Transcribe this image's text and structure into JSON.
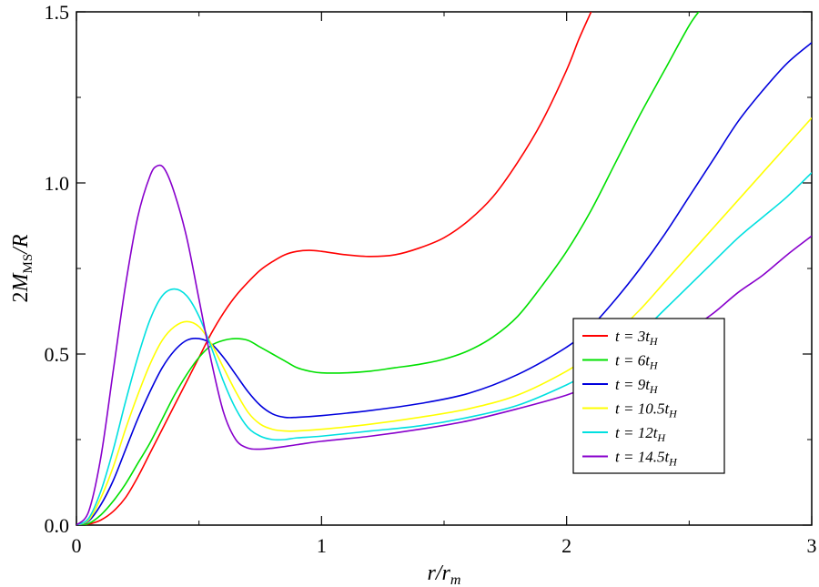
{
  "chart_data": {
    "type": "line",
    "xlabel": "r/r_m",
    "ylabel": "2M_MS/R",
    "xlim": [
      0,
      3
    ],
    "ylim": [
      0,
      1.5
    ],
    "x_ticks": [
      "0",
      "1",
      "2",
      "3"
    ],
    "y_ticks": [
      "0.0",
      "0.5",
      "1.0",
      "1.5"
    ],
    "grid": false,
    "legend_position": "center-right",
    "series": [
      {
        "name": "t = 3t_H",
        "color": "#ff0000",
        "points": [
          [
            0,
            0
          ],
          [
            0.05,
            0.003
          ],
          [
            0.1,
            0.015
          ],
          [
            0.15,
            0.04
          ],
          [
            0.2,
            0.08
          ],
          [
            0.25,
            0.14
          ],
          [
            0.3,
            0.21
          ],
          [
            0.35,
            0.28
          ],
          [
            0.4,
            0.35
          ],
          [
            0.45,
            0.42
          ],
          [
            0.5,
            0.49
          ],
          [
            0.55,
            0.56
          ],
          [
            0.6,
            0.62
          ],
          [
            0.65,
            0.67
          ],
          [
            0.7,
            0.71
          ],
          [
            0.75,
            0.745
          ],
          [
            0.8,
            0.77
          ],
          [
            0.85,
            0.79
          ],
          [
            0.9,
            0.8
          ],
          [
            0.95,
            0.803
          ],
          [
            1.0,
            0.8
          ],
          [
            1.1,
            0.79
          ],
          [
            1.2,
            0.785
          ],
          [
            1.3,
            0.79
          ],
          [
            1.4,
            0.81
          ],
          [
            1.5,
            0.84
          ],
          [
            1.6,
            0.89
          ],
          [
            1.7,
            0.96
          ],
          [
            1.8,
            1.06
          ],
          [
            1.9,
            1.18
          ],
          [
            2.0,
            1.33
          ],
          [
            2.05,
            1.42
          ],
          [
            2.1,
            1.5
          ]
        ]
      },
      {
        "name": "t = 6t_H",
        "color": "#00e000",
        "points": [
          [
            0,
            0
          ],
          [
            0.05,
            0.005
          ],
          [
            0.1,
            0.03
          ],
          [
            0.15,
            0.07
          ],
          [
            0.2,
            0.12
          ],
          [
            0.25,
            0.18
          ],
          [
            0.3,
            0.24
          ],
          [
            0.35,
            0.31
          ],
          [
            0.4,
            0.38
          ],
          [
            0.45,
            0.44
          ],
          [
            0.5,
            0.49
          ],
          [
            0.55,
            0.525
          ],
          [
            0.6,
            0.54
          ],
          [
            0.65,
            0.545
          ],
          [
            0.7,
            0.54
          ],
          [
            0.75,
            0.52
          ],
          [
            0.8,
            0.5
          ],
          [
            0.85,
            0.48
          ],
          [
            0.9,
            0.46
          ],
          [
            0.95,
            0.45
          ],
          [
            1.0,
            0.445
          ],
          [
            1.1,
            0.445
          ],
          [
            1.2,
            0.45
          ],
          [
            1.3,
            0.46
          ],
          [
            1.4,
            0.47
          ],
          [
            1.5,
            0.485
          ],
          [
            1.6,
            0.51
          ],
          [
            1.7,
            0.55
          ],
          [
            1.8,
            0.61
          ],
          [
            1.9,
            0.7
          ],
          [
            2.0,
            0.8
          ],
          [
            2.1,
            0.92
          ],
          [
            2.2,
            1.06
          ],
          [
            2.3,
            1.2
          ],
          [
            2.4,
            1.33
          ],
          [
            2.5,
            1.46
          ],
          [
            2.55,
            1.51
          ]
        ]
      },
      {
        "name": "t = 9t_H",
        "color": "#0000dd",
        "points": [
          [
            0,
            0
          ],
          [
            0.05,
            0.012
          ],
          [
            0.1,
            0.06
          ],
          [
            0.15,
            0.13
          ],
          [
            0.2,
            0.22
          ],
          [
            0.25,
            0.31
          ],
          [
            0.3,
            0.39
          ],
          [
            0.35,
            0.46
          ],
          [
            0.4,
            0.51
          ],
          [
            0.45,
            0.54
          ],
          [
            0.5,
            0.545
          ],
          [
            0.55,
            0.53
          ],
          [
            0.6,
            0.49
          ],
          [
            0.65,
            0.44
          ],
          [
            0.7,
            0.39
          ],
          [
            0.75,
            0.35
          ],
          [
            0.8,
            0.325
          ],
          [
            0.85,
            0.315
          ],
          [
            0.9,
            0.315
          ],
          [
            1.0,
            0.32
          ],
          [
            1.2,
            0.335
          ],
          [
            1.4,
            0.355
          ],
          [
            1.6,
            0.385
          ],
          [
            1.8,
            0.44
          ],
          [
            2.0,
            0.52
          ],
          [
            2.1,
            0.58
          ],
          [
            2.2,
            0.66
          ],
          [
            2.3,
            0.75
          ],
          [
            2.4,
            0.85
          ],
          [
            2.5,
            0.96
          ],
          [
            2.6,
            1.07
          ],
          [
            2.7,
            1.18
          ],
          [
            2.8,
            1.27
          ],
          [
            2.9,
            1.35
          ],
          [
            3.0,
            1.41
          ]
        ]
      },
      {
        "name": "t = 10.5t_H",
        "color": "#ffff00",
        "points": [
          [
            0,
            0
          ],
          [
            0.05,
            0.015
          ],
          [
            0.1,
            0.08
          ],
          [
            0.15,
            0.17
          ],
          [
            0.2,
            0.28
          ],
          [
            0.25,
            0.38
          ],
          [
            0.3,
            0.47
          ],
          [
            0.35,
            0.54
          ],
          [
            0.4,
            0.58
          ],
          [
            0.45,
            0.595
          ],
          [
            0.5,
            0.58
          ],
          [
            0.55,
            0.53
          ],
          [
            0.6,
            0.46
          ],
          [
            0.65,
            0.39
          ],
          [
            0.7,
            0.33
          ],
          [
            0.75,
            0.295
          ],
          [
            0.8,
            0.28
          ],
          [
            0.85,
            0.275
          ],
          [
            0.9,
            0.275
          ],
          [
            1.0,
            0.28
          ],
          [
            1.2,
            0.295
          ],
          [
            1.4,
            0.315
          ],
          [
            1.6,
            0.34
          ],
          [
            1.8,
            0.38
          ],
          [
            2.0,
            0.45
          ],
          [
            2.1,
            0.5
          ],
          [
            2.2,
            0.56
          ],
          [
            2.3,
            0.63
          ],
          [
            2.4,
            0.71
          ],
          [
            2.5,
            0.79
          ],
          [
            2.6,
            0.87
          ],
          [
            2.7,
            0.95
          ],
          [
            2.8,
            1.03
          ],
          [
            2.9,
            1.11
          ],
          [
            3.0,
            1.19
          ]
        ]
      },
      {
        "name": "t = 12t_H",
        "color": "#00e0e0",
        "points": [
          [
            0,
            0
          ],
          [
            0.05,
            0.02
          ],
          [
            0.1,
            0.1
          ],
          [
            0.15,
            0.22
          ],
          [
            0.2,
            0.36
          ],
          [
            0.25,
            0.49
          ],
          [
            0.3,
            0.6
          ],
          [
            0.35,
            0.67
          ],
          [
            0.4,
            0.69
          ],
          [
            0.45,
            0.67
          ],
          [
            0.5,
            0.61
          ],
          [
            0.55,
            0.52
          ],
          [
            0.6,
            0.42
          ],
          [
            0.65,
            0.34
          ],
          [
            0.7,
            0.285
          ],
          [
            0.75,
            0.26
          ],
          [
            0.8,
            0.25
          ],
          [
            0.85,
            0.25
          ],
          [
            0.9,
            0.255
          ],
          [
            1.0,
            0.26
          ],
          [
            1.2,
            0.275
          ],
          [
            1.4,
            0.29
          ],
          [
            1.6,
            0.315
          ],
          [
            1.8,
            0.35
          ],
          [
            2.0,
            0.41
          ],
          [
            2.1,
            0.45
          ],
          [
            2.2,
            0.5
          ],
          [
            2.3,
            0.56
          ],
          [
            2.4,
            0.63
          ],
          [
            2.5,
            0.7
          ],
          [
            2.6,
            0.77
          ],
          [
            2.7,
            0.84
          ],
          [
            2.8,
            0.9
          ],
          [
            2.9,
            0.96
          ],
          [
            3.0,
            1.03
          ]
        ]
      },
      {
        "name": "t = 14.5t_H",
        "color": "#8800cc",
        "points": [
          [
            0,
            0
          ],
          [
            0.05,
            0.04
          ],
          [
            0.1,
            0.2
          ],
          [
            0.15,
            0.45
          ],
          [
            0.2,
            0.7
          ],
          [
            0.25,
            0.9
          ],
          [
            0.3,
            1.02
          ],
          [
            0.33,
            1.05
          ],
          [
            0.36,
            1.04
          ],
          [
            0.4,
            0.97
          ],
          [
            0.45,
            0.84
          ],
          [
            0.5,
            0.66
          ],
          [
            0.55,
            0.48
          ],
          [
            0.6,
            0.33
          ],
          [
            0.65,
            0.25
          ],
          [
            0.7,
            0.225
          ],
          [
            0.75,
            0.222
          ],
          [
            0.8,
            0.225
          ],
          [
            0.9,
            0.235
          ],
          [
            1.0,
            0.245
          ],
          [
            1.2,
            0.26
          ],
          [
            1.4,
            0.28
          ],
          [
            1.6,
            0.305
          ],
          [
            1.8,
            0.34
          ],
          [
            2.0,
            0.38
          ],
          [
            2.1,
            0.41
          ],
          [
            2.2,
            0.44
          ],
          [
            2.3,
            0.48
          ],
          [
            2.4,
            0.52
          ],
          [
            2.5,
            0.57
          ],
          [
            2.6,
            0.62
          ],
          [
            2.7,
            0.68
          ],
          [
            2.8,
            0.73
          ],
          [
            2.9,
            0.79
          ],
          [
            3.0,
            0.845
          ]
        ]
      }
    ]
  }
}
